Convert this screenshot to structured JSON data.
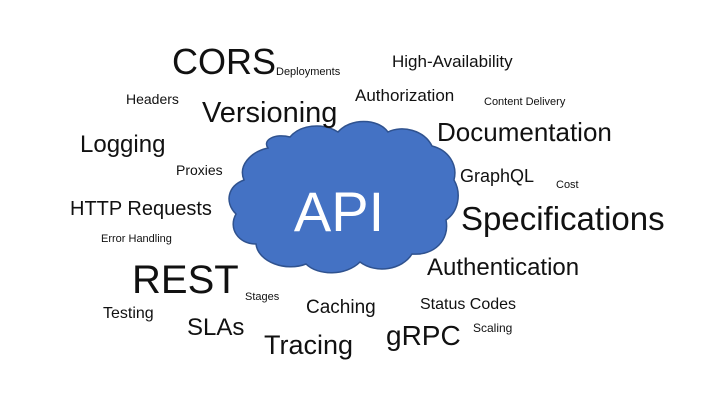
{
  "center": {
    "label": "API",
    "cloud_fill": "#4472c4",
    "cloud_stroke": "#2f528f",
    "label_color": "#ffffff"
  },
  "words": {
    "cors": "CORS",
    "deployments": "Deployments",
    "high_availability": "High-Availability",
    "headers": "Headers",
    "authorization": "Authorization",
    "content_delivery": "Content Delivery",
    "versioning": "Versioning",
    "documentation": "Documentation",
    "logging": "Logging",
    "proxies": "Proxies",
    "graphql": "GraphQL",
    "cost": "Cost",
    "http_requests": "HTTP Requests",
    "specifications": "Specifications",
    "error_handling": "Error Handling",
    "rest": "REST",
    "authentication": "Authentication",
    "stages": "Stages",
    "caching": "Caching",
    "status_codes": "Status Codes",
    "testing": "Testing",
    "slas": "SLAs",
    "scaling": "Scaling",
    "grpc": "gRPC",
    "tracing": "Tracing"
  }
}
